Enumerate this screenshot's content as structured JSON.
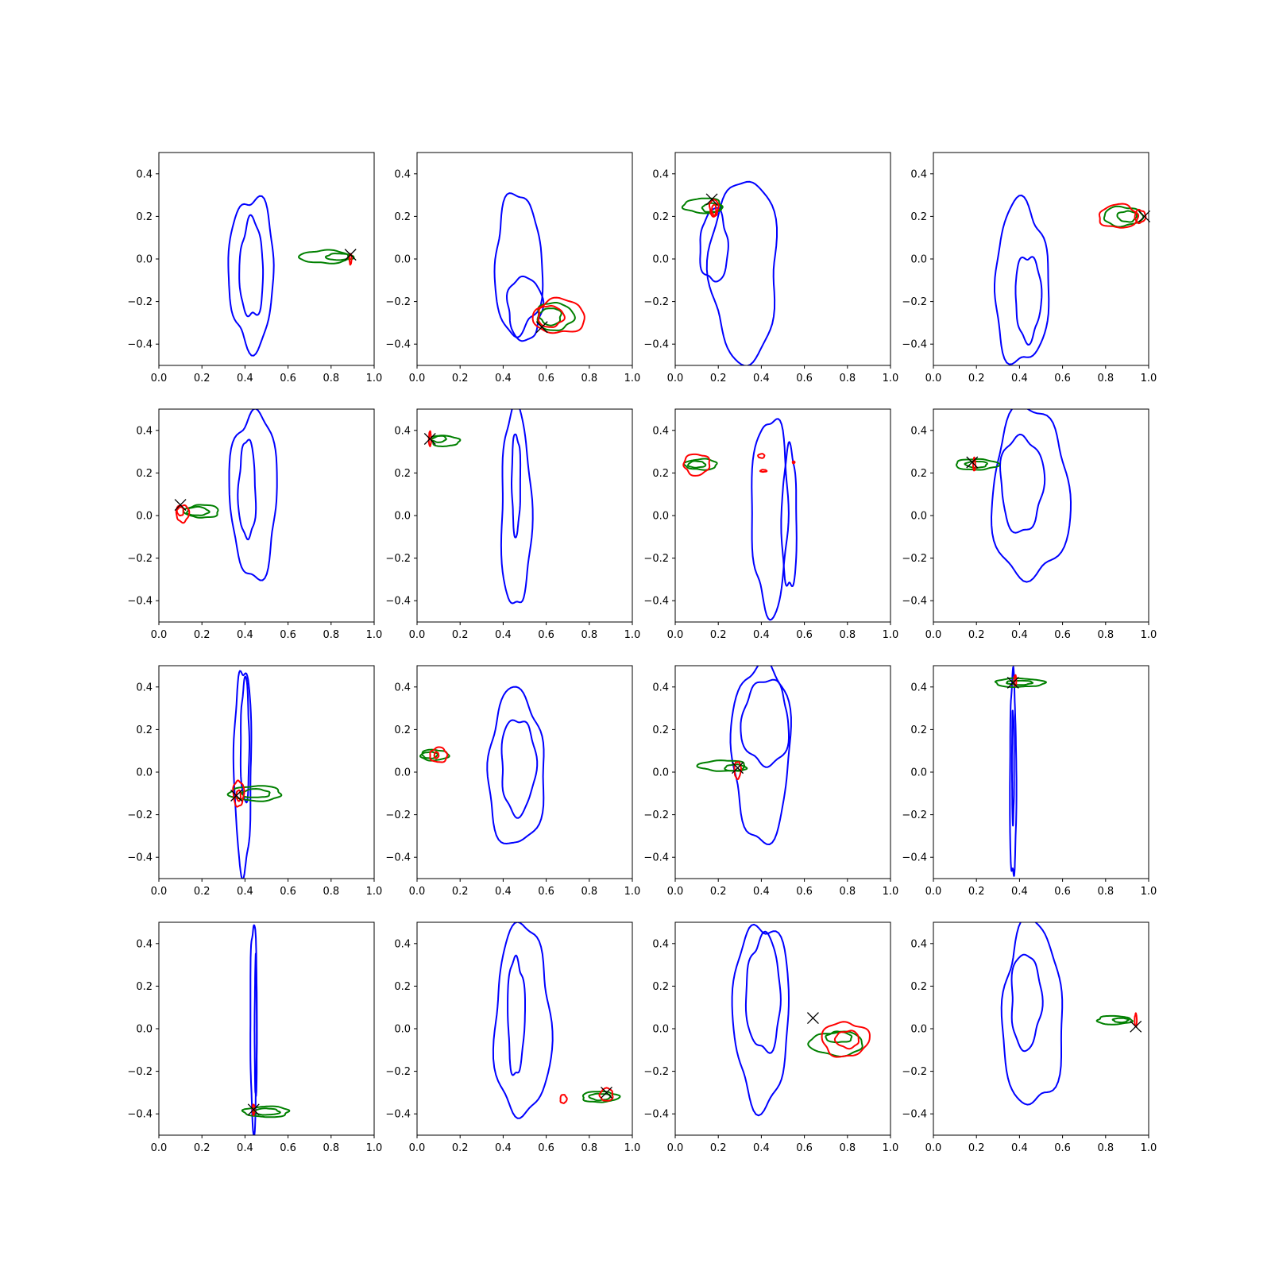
{
  "figure": {
    "layout": "4x4 grid of contour subplots",
    "colors": {
      "blue": "#0000ff",
      "green": "#008000",
      "red": "#ff0000",
      "marker": "#000000"
    }
  },
  "chart_data": [
    {
      "type": "contour",
      "xlim": [
        0,
        1
      ],
      "ylim": [
        -0.5,
        0.5
      ],
      "x_ticks": [
        "0.0",
        "0.2",
        "0.4",
        "0.6",
        "0.8",
        "1.0"
      ],
      "y_ticks": [
        "−0.4",
        "−0.2",
        "0.0",
        "0.2",
        "0.4"
      ],
      "blue": [
        [
          0.43,
          -0.06,
          0.21,
          0.71
        ],
        [
          0.43,
          -0.05,
          0.11,
          0.46
        ]
      ],
      "green": [
        [
          0.77,
          0.01,
          0.23,
          0.06
        ],
        [
          0.84,
          0.01,
          0.13,
          0.03
        ]
      ],
      "red": [
        [
          0.89,
          0.0,
          0.01,
          0.05
        ]
      ],
      "marker": [
        0.89,
        0.02
      ]
    },
    {
      "type": "contour",
      "xlim": [
        0,
        1
      ],
      "ylim": [
        -0.5,
        0.5
      ],
      "x_ticks": [
        "0.0",
        "0.2",
        "0.4",
        "0.6",
        "0.8",
        "1.0"
      ],
      "y_ticks": [
        "−0.4",
        "−0.2",
        "0.0",
        "0.2",
        "0.4"
      ],
      "blue": [
        [
          0.47,
          -0.03,
          0.22,
          0.66
        ],
        [
          0.5,
          -0.23,
          0.16,
          0.3
        ]
      ],
      "green": [
        [
          0.64,
          -0.27,
          0.17,
          0.13
        ],
        [
          0.62,
          -0.27,
          0.1,
          0.08
        ]
      ],
      "red": [
        [
          0.66,
          -0.27,
          0.24,
          0.16
        ],
        [
          0.62,
          -0.27,
          0.12,
          0.1
        ]
      ],
      "marker": [
        0.58,
        -0.32
      ]
    },
    {
      "type": "contour",
      "xlim": [
        0,
        1
      ],
      "ylim": [
        -0.5,
        0.5
      ],
      "x_ticks": [
        "0.0",
        "0.2",
        "0.4",
        "0.6",
        "0.8",
        "1.0"
      ],
      "y_ticks": [
        "−0.4",
        "−0.2",
        "0.0",
        "0.2",
        "0.4"
      ],
      "blue": [
        [
          0.32,
          -0.05,
          0.31,
          0.86
        ],
        [
          0.18,
          0.06,
          0.13,
          0.34
        ]
      ],
      "green": [
        [
          0.13,
          0.25,
          0.18,
          0.07
        ],
        [
          0.17,
          0.24,
          0.09,
          0.04
        ]
      ],
      "red": [
        [
          0.18,
          0.24,
          0.04,
          0.08
        ],
        [
          0.18,
          0.23,
          0.02,
          0.05
        ]
      ],
      "marker": [
        0.17,
        0.28
      ]
    },
    {
      "type": "contour",
      "xlim": [
        0,
        1
      ],
      "ylim": [
        -0.5,
        0.5
      ],
      "x_ticks": [
        "0.0",
        "0.2",
        "0.4",
        "0.6",
        "0.8",
        "1.0"
      ],
      "y_ticks": [
        "−0.4",
        "−0.2",
        "0.0",
        "0.2",
        "0.4"
      ],
      "blue": [
        [
          0.41,
          -0.12,
          0.25,
          0.76
        ],
        [
          0.44,
          -0.18,
          0.12,
          0.4
        ]
      ],
      "green": [
        [
          0.88,
          0.2,
          0.18,
          0.09
        ],
        [
          0.9,
          0.2,
          0.09,
          0.05
        ]
      ],
      "red": [
        [
          0.86,
          0.2,
          0.18,
          0.11
        ],
        [
          0.96,
          0.2,
          0.05,
          0.06
        ]
      ],
      "marker": [
        0.98,
        0.2
      ]
    },
    {
      "type": "contour",
      "xlim": [
        0,
        1
      ],
      "ylim": [
        -0.5,
        0.5
      ],
      "x_ticks": [
        "0.0",
        "0.2",
        "0.4",
        "0.6",
        "0.8",
        "1.0"
      ],
      "y_ticks": [
        "−0.4",
        "−0.2",
        "0.0",
        "0.2",
        "0.4"
      ],
      "blue": [
        [
          0.44,
          0.1,
          0.22,
          0.78
        ],
        [
          0.41,
          0.12,
          0.08,
          0.46
        ]
      ],
      "green": [
        [
          0.2,
          0.02,
          0.16,
          0.06
        ],
        [
          0.18,
          0.02,
          0.1,
          0.04
        ]
      ],
      "red": [
        [
          0.11,
          0.01,
          0.06,
          0.08
        ],
        [
          0.1,
          0.02,
          0.03,
          0.04
        ]
      ],
      "marker": [
        0.1,
        0.05
      ]
    },
    {
      "type": "contour",
      "xlim": [
        0,
        1
      ],
      "ylim": [
        -0.5,
        0.5
      ],
      "x_ticks": [
        "0.0",
        "0.2",
        "0.4",
        "0.6",
        "0.8",
        "1.0"
      ],
      "y_ticks": [
        "−0.4",
        "−0.2",
        "0.0",
        "0.2",
        "0.4"
      ],
      "blue": [
        [
          0.46,
          0.03,
          0.14,
          0.94
        ],
        [
          0.46,
          0.15,
          0.04,
          0.48
        ]
      ],
      "green": [
        [
          0.13,
          0.35,
          0.13,
          0.05
        ],
        [
          0.1,
          0.36,
          0.07,
          0.03
        ]
      ],
      "red": [
        [
          0.06,
          0.36,
          0.01,
          0.07
        ]
      ],
      "marker": [
        0.06,
        0.36
      ]
    },
    {
      "type": "contour",
      "xlim": [
        0,
        1
      ],
      "ylim": [
        -0.5,
        0.5
      ],
      "x_ticks": [
        "0.0",
        "0.2",
        "0.4",
        "0.6",
        "0.8",
        "1.0"
      ],
      "y_ticks": [
        "−0.4",
        "−0.2",
        "0.0",
        "0.2",
        "0.4"
      ],
      "blue": [
        [
          0.44,
          0.01,
          0.17,
          0.92
        ],
        [
          0.53,
          -0.02,
          0.07,
          0.66
        ]
      ],
      "green": [
        [
          0.12,
          0.24,
          0.15,
          0.05
        ],
        [
          0.1,
          0.24,
          0.08,
          0.03
        ]
      ],
      "red": [
        [
          0.1,
          0.24,
          0.12,
          0.1
        ],
        [
          0.4,
          0.28,
          0.03,
          0.02
        ],
        [
          0.41,
          0.21,
          0.03,
          0.01
        ],
        [
          0.55,
          0.25,
          0.01,
          0.01
        ]
      ],
      "marker": [
        0.0,
        0.0
      ],
      "marker_visible": false
    },
    {
      "type": "contour",
      "xlim": [
        0,
        1
      ],
      "ylim": [
        -0.5,
        0.5
      ],
      "x_ticks": [
        "0.0",
        "0.2",
        "0.4",
        "0.6",
        "0.8",
        "1.0"
      ],
      "y_ticks": [
        "−0.4",
        "−0.2",
        "0.0",
        "0.2",
        "0.4"
      ],
      "blue": [
        [
          0.45,
          0.1,
          0.36,
          0.8
        ],
        [
          0.41,
          0.15,
          0.2,
          0.45
        ]
      ],
      "green": [
        [
          0.2,
          0.24,
          0.2,
          0.05
        ],
        [
          0.2,
          0.24,
          0.1,
          0.03
        ]
      ],
      "red": [
        [
          0.19,
          0.24,
          0.01,
          0.06
        ]
      ],
      "marker": [
        0.18,
        0.25
      ]
    },
    {
      "type": "contour",
      "xlim": [
        0,
        1
      ],
      "ylim": [
        -0.5,
        0.5
      ],
      "x_ticks": [
        "0.0",
        "0.2",
        "0.4",
        "0.6",
        "0.8",
        "1.0"
      ],
      "y_ticks": [
        "−0.4",
        "−0.2",
        "0.0",
        "0.2",
        "0.4"
      ],
      "blue": [
        [
          0.39,
          0.02,
          0.08,
          0.96
        ],
        [
          0.4,
          0.14,
          0.04,
          0.58
        ]
      ],
      "green": [
        [
          0.45,
          -0.1,
          0.24,
          0.07
        ],
        [
          0.45,
          -0.1,
          0.13,
          0.04
        ]
      ],
      "red": [
        [
          0.37,
          -0.1,
          0.05,
          0.12
        ],
        [
          0.37,
          -0.11,
          0.02,
          0.05
        ]
      ],
      "marker": [
        0.36,
        -0.11
      ]
    },
    {
      "type": "contour",
      "xlim": [
        0,
        1
      ],
      "ylim": [
        -0.5,
        0.5
      ],
      "x_ticks": [
        "0.0",
        "0.2",
        "0.4",
        "0.6",
        "0.8",
        "1.0"
      ],
      "y_ticks": [
        "−0.4",
        "−0.2",
        "0.0",
        "0.2",
        "0.4"
      ],
      "blue": [
        [
          0.46,
          0.01,
          0.26,
          0.73
        ],
        [
          0.47,
          0.03,
          0.16,
          0.45
        ]
      ],
      "green": [
        [
          0.08,
          0.08,
          0.13,
          0.05
        ],
        [
          0.06,
          0.08,
          0.07,
          0.03
        ]
      ],
      "red": [
        [
          0.1,
          0.08,
          0.08,
          0.07
        ],
        [
          0.09,
          0.08,
          0.02,
          0.03
        ]
      ],
      "marker": [
        0.0,
        0.0
      ],
      "marker_visible": false
    },
    {
      "type": "contour",
      "xlim": [
        0,
        1
      ],
      "ylim": [
        -0.5,
        0.5
      ],
      "x_ticks": [
        "0.0",
        "0.2",
        "0.4",
        "0.6",
        "0.8",
        "1.0"
      ],
      "y_ticks": [
        "−0.4",
        "−0.2",
        "0.0",
        "0.2",
        "0.4"
      ],
      "blue": [
        [
          0.4,
          0.1,
          0.27,
          0.84
        ],
        [
          0.42,
          0.23,
          0.22,
          0.4
        ]
      ],
      "green": [
        [
          0.22,
          0.03,
          0.22,
          0.05
        ],
        [
          0.28,
          0.02,
          0.1,
          0.03
        ]
      ],
      "red": [
        [
          0.29,
          0.01,
          0.03,
          0.08
        ]
      ],
      "marker": [
        0.29,
        0.02
      ]
    },
    {
      "type": "contour",
      "xlim": [
        0,
        1
      ],
      "ylim": [
        -0.5,
        0.5
      ],
      "x_ticks": [
        "0.0",
        "0.2",
        "0.4",
        "0.6",
        "0.8",
        "1.0"
      ],
      "y_ticks": [
        "−0.4",
        "−0.2",
        "0.0",
        "0.2",
        "0.4"
      ],
      "blue": [
        [
          0.37,
          -0.03,
          0.03,
          0.95
        ],
        [
          0.37,
          0.03,
          0.01,
          0.52
        ]
      ],
      "green": [
        [
          0.4,
          0.42,
          0.23,
          0.04
        ],
        [
          0.4,
          0.42,
          0.12,
          0.02
        ]
      ],
      "red": [
        [
          0.38,
          0.43,
          0.01,
          0.05
        ]
      ],
      "marker": [
        0.37,
        0.42
      ]
    },
    {
      "type": "contour",
      "xlim": [
        0,
        1
      ],
      "ylim": [
        -0.5,
        0.5
      ],
      "x_ticks": [
        "0.0",
        "0.2",
        "0.4",
        "0.6",
        "0.8",
        "1.0"
      ],
      "y_ticks": [
        "−0.4",
        "−0.2",
        "0.0",
        "0.2",
        "0.4"
      ],
      "blue": [
        [
          0.44,
          0.02,
          0.03,
          0.98
        ],
        [
          0.45,
          0.0,
          0.01,
          0.66
        ]
      ],
      "green": [
        [
          0.5,
          -0.39,
          0.21,
          0.05
        ],
        [
          0.5,
          -0.39,
          0.12,
          0.03
        ]
      ],
      "red": [
        [
          0.44,
          -0.38,
          0.01,
          0.05
        ]
      ],
      "marker": [
        0.44,
        -0.38
      ]
    },
    {
      "type": "contour",
      "xlim": [
        0,
        1
      ],
      "ylim": [
        -0.5,
        0.5
      ],
      "x_ticks": [
        "0.0",
        "0.2",
        "0.4",
        "0.6",
        "0.8",
        "1.0"
      ],
      "y_ticks": [
        "−0.4",
        "−0.2",
        "0.0",
        "0.2",
        "0.4"
      ],
      "blue": [
        [
          0.49,
          0.03,
          0.26,
          0.9
        ],
        [
          0.46,
          0.06,
          0.08,
          0.55
        ]
      ],
      "green": [
        [
          0.85,
          -0.32,
          0.17,
          0.05
        ],
        [
          0.85,
          -0.32,
          0.1,
          0.03
        ]
      ],
      "red": [
        [
          0.88,
          -0.31,
          0.06,
          0.06
        ],
        [
          0.68,
          -0.33,
          0.03,
          0.04
        ]
      ],
      "marker": [
        0.88,
        -0.3
      ]
    },
    {
      "type": "contour",
      "xlim": [
        0,
        1
      ],
      "ylim": [
        -0.5,
        0.5
      ],
      "x_ticks": [
        "0.0",
        "0.2",
        "0.4",
        "0.6",
        "0.8",
        "1.0"
      ],
      "y_ticks": [
        "−0.4",
        "−0.2",
        "0.0",
        "0.2",
        "0.4"
      ],
      "blue": [
        [
          0.4,
          0.07,
          0.26,
          0.86
        ],
        [
          0.41,
          0.16,
          0.16,
          0.54
        ]
      ],
      "green": [
        [
          0.75,
          -0.07,
          0.25,
          0.11
        ],
        [
          0.76,
          -0.04,
          0.12,
          0.05
        ]
      ],
      "red": [
        [
          0.79,
          -0.05,
          0.22,
          0.16
        ],
        [
          0.8,
          -0.05,
          0.11,
          0.08
        ]
      ],
      "marker": [
        0.64,
        0.05
      ]
    },
    {
      "type": "contour",
      "xlim": [
        0,
        1
      ],
      "ylim": [
        -0.5,
        0.5
      ],
      "x_ticks": [
        "0.0",
        "0.2",
        "0.4",
        "0.6",
        "0.8",
        "1.0"
      ],
      "y_ticks": [
        "−0.4",
        "−0.2",
        "0.0",
        "0.2",
        "0.4"
      ],
      "blue": [
        [
          0.46,
          0.06,
          0.28,
          0.86
        ],
        [
          0.43,
          0.13,
          0.14,
          0.45
        ]
      ],
      "green": [
        [
          0.84,
          0.04,
          0.16,
          0.04
        ],
        [
          0.87,
          0.04,
          0.07,
          0.02
        ]
      ],
      "red": [
        [
          0.94,
          0.04,
          0.01,
          0.06
        ]
      ],
      "marker": [
        0.94,
        0.01
      ]
    }
  ]
}
